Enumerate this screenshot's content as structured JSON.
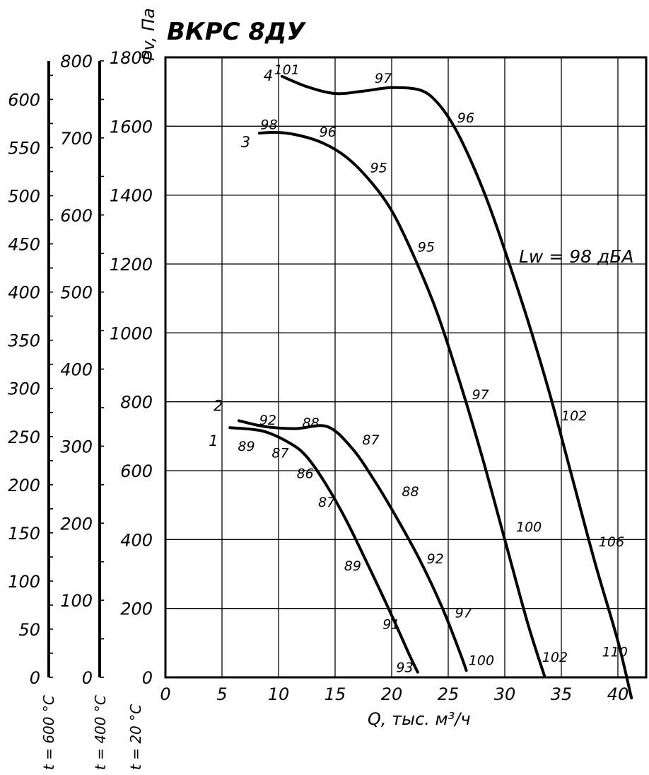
{
  "chart_data": {
    "type": "line",
    "title": "ВКРС 8ДУ",
    "xlabel": "Q, тыс. м³/ч",
    "ylabel": "Pv, Па",
    "xlim": [
      0,
      42.5
    ],
    "ylim": [
      0,
      1800
    ],
    "x_ticks": [
      0,
      5,
      10,
      15,
      20,
      25,
      30,
      35,
      40
    ],
    "y_ticks": [
      0,
      200,
      400,
      600,
      800,
      1000,
      1200,
      1400,
      1600,
      1800
    ],
    "grid": true,
    "annotation": "Lw = 98 дБА",
    "secondary_scales": [
      {
        "name": "t = 20 °C",
        "ticks": [
          0,
          200,
          400,
          600,
          800,
          1000,
          1200,
          1400,
          1600,
          1800
        ]
      },
      {
        "name": "t = 400 °C",
        "max": 800,
        "ticks": [
          0,
          100,
          200,
          300,
          400,
          500,
          600,
          700,
          800
        ]
      },
      {
        "name": "t = 600 °C",
        "max": 640,
        "ticks": [
          0,
          50,
          100,
          150,
          200,
          250,
          300,
          350,
          400,
          450,
          500,
          550,
          600
        ]
      }
    ],
    "series": [
      {
        "name": "1",
        "points": [
          [
            5.7,
            725
          ],
          [
            8.6,
            715
          ],
          [
            11.0,
            680
          ],
          [
            12.5,
            640
          ],
          [
            14.2,
            560
          ],
          [
            16.0,
            455
          ],
          [
            18.0,
            320
          ],
          [
            20.0,
            180
          ],
          [
            21.5,
            70
          ],
          [
            22.3,
            15
          ]
        ],
        "labels": [
          {
            "x": 6.4,
            "y": 672,
            "text": "89"
          },
          {
            "x": 9.4,
            "y": 652,
            "text": "87"
          },
          {
            "x": 11.6,
            "y": 593,
            "text": "86"
          },
          {
            "x": 13.5,
            "y": 510,
            "text": "87"
          },
          {
            "x": 15.8,
            "y": 325,
            "text": "89"
          },
          {
            "x": 19.2,
            "y": 155,
            "text": "91"
          },
          {
            "x": 20.4,
            "y": 30,
            "text": "93"
          }
        ]
      },
      {
        "name": "2",
        "points": [
          [
            6.5,
            745
          ],
          [
            8.8,
            728
          ],
          [
            11.5,
            722
          ],
          [
            14.3,
            728
          ],
          [
            16.5,
            665
          ],
          [
            18.5,
            570
          ],
          [
            20.5,
            460
          ],
          [
            22.5,
            340
          ],
          [
            24.5,
            200
          ],
          [
            26.0,
            75
          ],
          [
            26.6,
            20
          ]
        ],
        "labels": [
          {
            "x": 8.3,
            "y": 748,
            "text": "92"
          },
          {
            "x": 12.1,
            "y": 740,
            "text": "88"
          },
          {
            "x": 17.4,
            "y": 690,
            "text": "87"
          },
          {
            "x": 20.9,
            "y": 540,
            "text": "88"
          },
          {
            "x": 23.1,
            "y": 345,
            "text": "92"
          },
          {
            "x": 25.6,
            "y": 188,
            "text": "97"
          },
          {
            "x": 26.8,
            "y": 50,
            "text": "100"
          }
        ]
      },
      {
        "name": "3",
        "points": [
          [
            8.3,
            1580
          ],
          [
            10.0,
            1582
          ],
          [
            12.0,
            1572
          ],
          [
            14.0,
            1550
          ],
          [
            16.0,
            1510
          ],
          [
            18.0,
            1445
          ],
          [
            20.0,
            1355
          ],
          [
            22.0,
            1220
          ],
          [
            24.0,
            1060
          ],
          [
            26.0,
            860
          ],
          [
            28.0,
            640
          ],
          [
            30.0,
            400
          ],
          [
            32.0,
            160
          ],
          [
            33.5,
            5
          ]
        ],
        "labels": [
          {
            "x": 8.4,
            "y": 1606,
            "text": "98"
          },
          {
            "x": 13.6,
            "y": 1584,
            "text": "96"
          },
          {
            "x": 18.1,
            "y": 1480,
            "text": "95"
          },
          {
            "x": 22.3,
            "y": 1250,
            "text": "95"
          },
          {
            "x": 27.1,
            "y": 822,
            "text": "97"
          },
          {
            "x": 31.0,
            "y": 438,
            "text": "100"
          },
          {
            "x": 33.3,
            "y": 60,
            "text": "102"
          }
        ]
      },
      {
        "name": "4",
        "points": [
          [
            10.3,
            1745
          ],
          [
            12.5,
            1715
          ],
          [
            15.0,
            1695
          ],
          [
            17.5,
            1702
          ],
          [
            20.0,
            1712
          ],
          [
            22.5,
            1705
          ],
          [
            24.0,
            1670
          ],
          [
            25.5,
            1600
          ],
          [
            27.0,
            1500
          ],
          [
            28.5,
            1380
          ],
          [
            30.0,
            1240
          ],
          [
            32.0,
            1040
          ],
          [
            34.0,
            820
          ],
          [
            36.0,
            575
          ],
          [
            38.0,
            330
          ],
          [
            40.0,
            105
          ],
          [
            41.2,
            -60
          ]
        ],
        "labels": [
          {
            "x": 9.6,
            "y": 1765,
            "text": "101"
          },
          {
            "x": 18.5,
            "y": 1740,
            "text": "97"
          },
          {
            "x": 25.8,
            "y": 1625,
            "text": "96"
          },
          {
            "x": 35.0,
            "y": 760,
            "text": "102"
          },
          {
            "x": 38.3,
            "y": 395,
            "text": "106"
          },
          {
            "x": 38.6,
            "y": 75,
            "text": "110"
          }
        ]
      }
    ]
  }
}
